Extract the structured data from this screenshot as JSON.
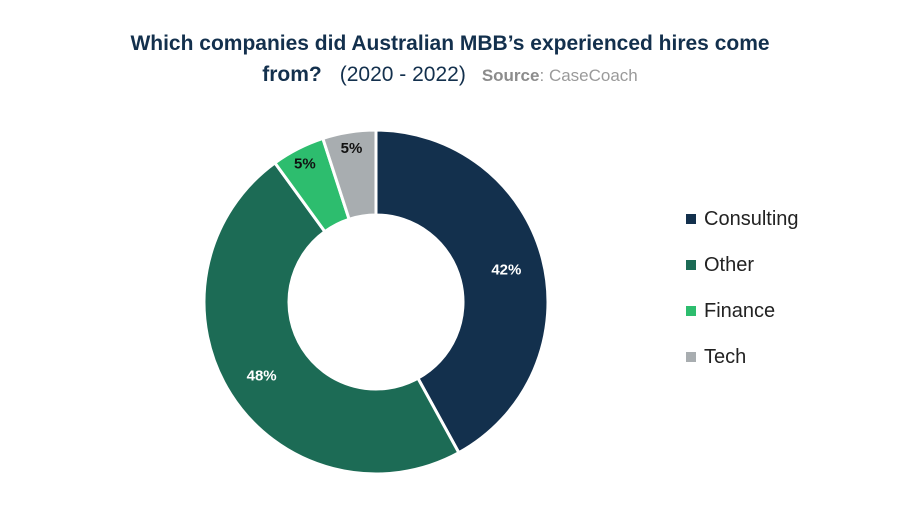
{
  "title": {
    "line1": "Which companies did Australian MBB’s experienced hires come",
    "line2": "from?",
    "years": "(2020 - 2022)",
    "source_label": "Source",
    "source_sep": ":",
    "source_value": "CaseCoach"
  },
  "chart_data": {
    "type": "pie",
    "donut": true,
    "title": "Which companies did Australian MBB’s experienced hires come from? (2020 - 2022)",
    "source": "Source: CaseCoach",
    "legend_position": "right",
    "slices": [
      {
        "label": "Consulting",
        "value": 42,
        "display": "42%",
        "color": "#13304d"
      },
      {
        "label": "Other",
        "value": 48,
        "display": "48%",
        "color": "#1c6b55"
      },
      {
        "label": "Finance",
        "value": 5,
        "display": "5%",
        "color": "#2dbd6e"
      },
      {
        "label": "Tech",
        "value": 5,
        "display": "5%",
        "color": "#a8adb0"
      }
    ]
  }
}
